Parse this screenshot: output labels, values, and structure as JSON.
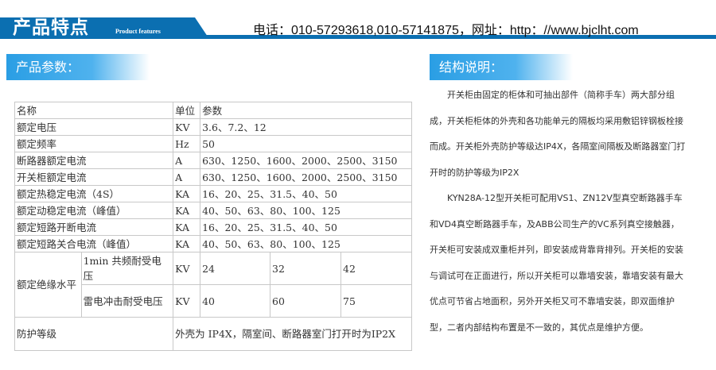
{
  "header": {
    "title": "产品特点",
    "subtitle": "Product features",
    "contact": "电话：010-57293618,010-57141875，网址：http：//www.bjclht.com",
    "brand_color": "#0b6fb1"
  },
  "left_section": {
    "title": "产品参数：",
    "table": {
      "headers": [
        "名称",
        "单位",
        "参数"
      ],
      "rows": [
        [
          "额定电压",
          "KV",
          "3.6、7.2、12"
        ],
        [
          "额定频率",
          "Hz",
          "50"
        ],
        [
          "断路器额定电流",
          "A",
          "630、1250、1600、2000、2500、3150"
        ],
        [
          "开关柜额定电流",
          "A",
          "630、1250、1600、2000、2500、3150"
        ],
        [
          "额定热稳定电流（4S）",
          "KA",
          "16、20、25、31.5、40、50"
        ],
        [
          "额定动稳定电流（峰值）",
          "KA",
          "40、50、63、80、100、125"
        ],
        [
          "额定短路开断电流",
          "KA",
          "16、20、25、31.5、40、50"
        ],
        [
          "额定短路关合电流（峰值）",
          "KA",
          "40、50、63、80、100、125"
        ]
      ],
      "insulation": {
        "label": "额定绝缘水平",
        "rows": [
          {
            "name": "1min 共频耐受电压",
            "unit": "KV",
            "values": [
              "24",
              "32",
              "42"
            ]
          },
          {
            "name": "雷电冲击耐受电压",
            "unit": "KV",
            "values": [
              "40",
              "60",
              "75"
            ]
          }
        ]
      },
      "protection": {
        "label": "防护等级",
        "value": "外壳为 IP4X，隔室间、断路器室门打开时为IP2X"
      }
    }
  },
  "right_section": {
    "title": "结构说明：",
    "paragraphs": [
      "开关柜由固定的柜体和可抽出部件（简称手车）两大部分组成，开关柜柜体的外壳和各功能单元的隔板均采用敷铝锌钢板栓接而成。开关柜外壳防护等级达IP4X，各隔室间隔板及断路器室门打开时的防护等级为IP2X",
      "KYN28A-12型开关柜可配用VS1、ZN12V型真空断路器手车和VD4真空断路器手车，及ABB公司生产的VC系列真空接触器，开关柜可安装成双重柜并列，即安装成背靠背排列。开关柜的安装与调试可在正面进行，所以开关柜可以靠墙安装，靠墙安装有最大优点可节省占地面积，另外开关柜又可不靠墙安装，即双面维护型，二者内部结构布置是不一致的，其优点是维护方便。"
    ]
  }
}
